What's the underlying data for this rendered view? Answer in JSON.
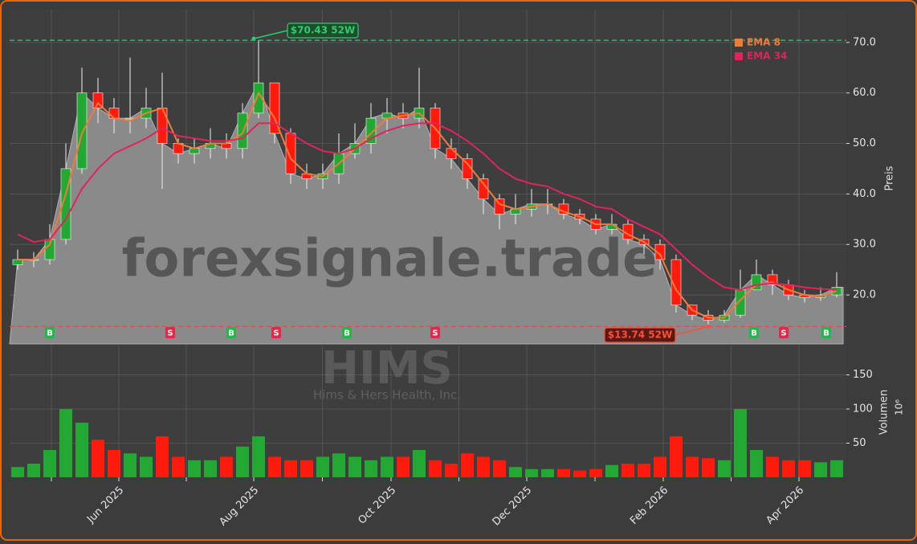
{
  "chart_data": {
    "type": "candlestick",
    "watermark": "forexsignale.trade",
    "ticker": "HIMS",
    "company": "Hims & Hers Health, Inc.",
    "categories": [
      null,
      null,
      null,
      null,
      null,
      null,
      null,
      null,
      null,
      null,
      null,
      null,
      null,
      null,
      null,
      null,
      null,
      null,
      null,
      null,
      null,
      null,
      null,
      null,
      null,
      null,
      null,
      null,
      null,
      null,
      null,
      null,
      null,
      null,
      null,
      null,
      null,
      null,
      null,
      null,
      null,
      null,
      null,
      null,
      null,
      null,
      null,
      null,
      null,
      null,
      null,
      null
    ],
    "open": [
      26,
      27,
      27,
      31,
      45,
      60,
      57,
      55,
      55,
      57,
      50,
      48,
      49,
      50,
      49,
      56,
      62,
      52,
      44,
      43,
      44,
      48,
      50,
      55,
      56,
      55,
      57,
      49,
      47,
      43,
      39,
      36,
      37,
      38,
      38,
      36,
      35,
      33,
      34,
      31,
      30,
      27,
      18,
      16,
      15,
      16,
      21,
      24,
      22,
      20,
      19.5,
      20
    ],
    "high": [
      29,
      28.5,
      34,
      50,
      65,
      63,
      59,
      67,
      61,
      64,
      51,
      51,
      53,
      52,
      58,
      70.43,
      62,
      53,
      46,
      46,
      52,
      54,
      58,
      59,
      58,
      65,
      58,
      51,
      48,
      44,
      40,
      40,
      41,
      41,
      39,
      37,
      36,
      36,
      35,
      32,
      31,
      28,
      18,
      17,
      17,
      25,
      27,
      25,
      23,
      21,
      21.5,
      24.5
    ],
    "low": [
      25,
      25.5,
      26,
      30,
      44,
      54,
      52,
      52,
      53,
      41,
      46,
      46,
      47,
      47,
      47,
      55,
      50,
      42,
      41,
      41,
      42,
      47,
      48,
      52,
      53,
      53,
      47,
      45,
      41,
      36,
      33,
      34,
      35.5,
      36,
      35,
      34,
      32,
      32,
      30,
      28,
      25,
      16.5,
      15,
      13.74,
      14.5,
      15.5,
      21,
      20,
      19,
      18.5,
      18.8,
      19.5
    ],
    "close": [
      27,
      27,
      31,
      45,
      60,
      57,
      55,
      55,
      57,
      50,
      48,
      49,
      50,
      49,
      56,
      62,
      52,
      44,
      43,
      44,
      48,
      50,
      55,
      56,
      55,
      57,
      49,
      47,
      43,
      39,
      36,
      37,
      38,
      38,
      36,
      35,
      33,
      34,
      31,
      30,
      27,
      18,
      16,
      15,
      16,
      21,
      24,
      22,
      20,
      19.5,
      20,
      21.5
    ],
    "up_color": "#22a833",
    "down_color": "#ff1a0e",
    "area_color": "#8a8a8a",
    "series": [
      {
        "name": "EMA 8",
        "color": "#f07b3a",
        "values": [
          27,
          27,
          30,
          40,
          52,
          58,
          55,
          54.5,
          56,
          57,
          50,
          49,
          50,
          50,
          52,
          60,
          55,
          47,
          44,
          43.5,
          46,
          49,
          52,
          55,
          55.5,
          56,
          53,
          49,
          46,
          42,
          38,
          37,
          37.5,
          38,
          36.5,
          35.5,
          34,
          34,
          32,
          30.5,
          28,
          21,
          17,
          15.5,
          15.5,
          19,
          22,
          22.5,
          21,
          20,
          19.8,
          20.8
        ]
      },
      {
        "name": "EMA 34",
        "color": "#e0245e",
        "values": [
          32,
          30.5,
          31,
          35,
          41,
          45,
          48,
          49.5,
          51,
          53,
          51.5,
          51,
          50.5,
          50.5,
          51,
          54,
          54,
          52,
          50,
          48.5,
          48,
          49,
          51,
          52.5,
          53.5,
          54,
          54,
          52.5,
          50.5,
          48,
          45,
          43,
          42,
          41.5,
          40,
          39,
          37.5,
          37,
          35,
          33.5,
          32,
          29,
          26,
          23.5,
          21.5,
          21,
          22,
          22.3,
          22,
          21.5,
          21.2,
          21
        ]
      }
    ],
    "ylabel": "Preis",
    "ylim": [
      10.3,
      76.5
    ],
    "yticks": [
      {
        "value": 20,
        "label": "20.0"
      },
      {
        "value": 30,
        "label": "30.0"
      },
      {
        "value": 40,
        "label": "40.0"
      },
      {
        "value": 50,
        "label": "50.0"
      },
      {
        "value": 60,
        "label": "60.0"
      },
      {
        "value": 70,
        "label": "70.0"
      }
    ],
    "xticks": [
      {
        "value": 6.3,
        "label": "Jun 2025"
      },
      {
        "value": 14.7,
        "label": "Aug 2025"
      },
      {
        "value": 23.25,
        "label": "Oct 2025"
      },
      {
        "value": 31.7,
        "label": "Dec 2025"
      },
      {
        "value": 40.2,
        "label": "Feb 2026"
      },
      {
        "value": 48.65,
        "label": "Apr 2026"
      }
    ],
    "hlines": [
      {
        "value": 70.43,
        "label": "$70.43 52W",
        "color": "#2ecc71"
      },
      {
        "value": 13.74,
        "label": "$13.74 52W",
        "color": "#e74c3c"
      }
    ],
    "signals": [
      {
        "x": 2,
        "label": "B"
      },
      {
        "x": 9.5,
        "label": "S"
      },
      {
        "x": 13.3,
        "label": "B"
      },
      {
        "x": 16.1,
        "label": "S"
      },
      {
        "x": 20.5,
        "label": "B"
      },
      {
        "x": 26,
        "label": "S"
      },
      {
        "x": 45.85,
        "label": "B"
      },
      {
        "x": 47.7,
        "label": "S"
      },
      {
        "x": 50.35,
        "label": "B"
      }
    ],
    "volume": {
      "ylabel": "Volumen",
      "scale_label": "10⁶",
      "values": [
        15,
        20,
        40,
        100,
        80,
        55,
        40,
        35,
        30,
        60,
        30,
        25,
        25,
        30,
        45,
        60,
        30,
        25,
        25,
        30,
        35,
        30,
        25,
        30,
        30,
        40,
        25,
        20,
        35,
        30,
        25,
        15,
        12,
        12,
        12,
        10,
        12,
        18,
        20,
        20,
        30,
        60,
        30,
        28,
        25,
        100,
        40,
        30,
        25,
        25,
        22,
        25
      ],
      "ylim": [
        0,
        193
      ],
      "yticks": [
        50,
        100,
        150
      ]
    },
    "grid": true,
    "legend": "upper right"
  }
}
